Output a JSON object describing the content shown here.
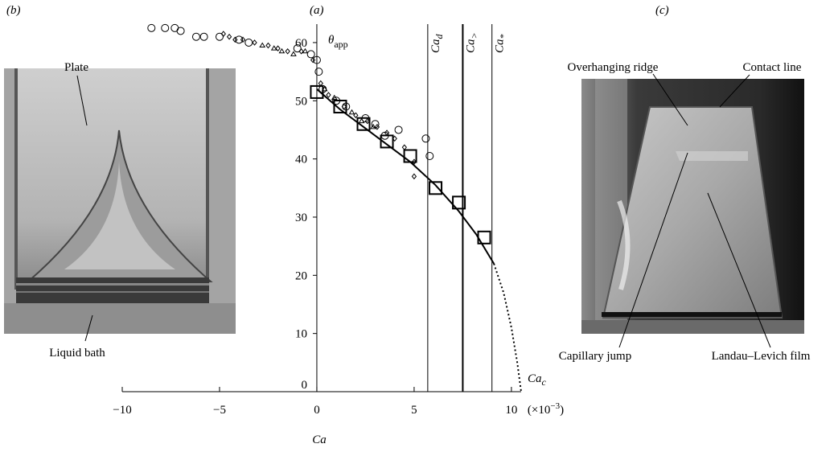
{
  "chart_data": {
    "type": "scatter",
    "panel_label": "(a)",
    "x_label": "Ca",
    "x_unit": {
      "text": "(×10",
      "sup": "−3",
      "tail": ")"
    },
    "y_label": {
      "text": "θ",
      "sub": "app"
    },
    "xlim": [
      -10,
      10.5
    ],
    "ylim": [
      0,
      64
    ],
    "xticks": [
      {
        "value": -10,
        "label": "−10"
      },
      {
        "value": -5,
        "label": "−5"
      },
      0,
      5,
      10
    ],
    "yticks": [
      0,
      10,
      20,
      30,
      40,
      50,
      60
    ],
    "series": [
      {
        "marker": "circle",
        "color": "#000000",
        "x": [
          -8.5,
          -7.8,
          -7.3,
          -7.0,
          -6.2,
          -5.8,
          -5.0,
          -4.0,
          -3.5,
          -1.0,
          -0.3,
          0.0,
          0.1,
          0.3,
          1.0,
          1.5,
          2.5,
          3.0,
          3.5,
          4.2,
          5.6,
          5.8
        ],
        "values": [
          62.5,
          62.5,
          62.5,
          62,
          61,
          61,
          61,
          60.5,
          60,
          59,
          58,
          57,
          55,
          52,
          50,
          49,
          47,
          46,
          44,
          45,
          43.5,
          40.5
        ]
      },
      {
        "marker": "diamond",
        "color": "#000000",
        "x": [
          -4.8,
          -4.5,
          -4.2,
          -3.8,
          -3.2,
          -2.5,
          -2.0,
          -1.5,
          -0.8,
          -0.2,
          0.2,
          0.6,
          1.4,
          2.0,
          2.6,
          3.1,
          3.6,
          4.0,
          4.5,
          5.0,
          5.0
        ],
        "values": [
          61.5,
          61,
          60.5,
          60.5,
          60,
          59.5,
          59,
          58.5,
          58.5,
          57,
          53,
          51,
          49,
          47.5,
          46.5,
          45.5,
          44.5,
          43.5,
          42,
          39.5,
          37
        ]
      },
      {
        "marker": "triangle",
        "color": "#000000",
        "x": [
          -2.8,
          -2.2,
          -1.8,
          -1.2,
          -0.6,
          0.4,
          0.9,
          1.8,
          2.3,
          2.9
        ],
        "values": [
          59.5,
          59,
          58.5,
          58,
          58.5,
          52,
          50.5,
          48,
          46.5,
          45.5
        ]
      },
      {
        "marker": "square",
        "color": "#000000",
        "x": [
          0.0,
          1.2,
          2.4,
          3.6,
          4.8,
          6.1,
          7.3,
          8.6
        ],
        "values": [
          51.5,
          49,
          46,
          43,
          40.5,
          35,
          32.5,
          26.5
        ]
      },
      {
        "marker": "line",
        "style": "solid",
        "color": "#000000",
        "x": [
          0.0,
          1.2,
          2.4,
          3.6,
          4.8,
          6.1,
          7.3,
          8.2,
          9.1
        ],
        "values": [
          52,
          48.5,
          45.5,
          42.5,
          39.5,
          35.5,
          31,
          27,
          22
        ]
      },
      {
        "marker": "line",
        "style": "dotted",
        "color": "#000000",
        "x": [
          9.1,
          9.6,
          10.0,
          10.3,
          10.5
        ],
        "values": [
          22,
          17,
          11,
          5,
          0
        ]
      }
    ],
    "vlines": [
      {
        "x": 5.7,
        "width": 1,
        "label": {
          "text": "Ca",
          "sub": "d"
        }
      },
      {
        "x": 7.5,
        "width": 2,
        "label": {
          "text": "Ca",
          "sub": ">"
        }
      },
      {
        "x": 9.0,
        "width": 1,
        "label": {
          "text": "Ca",
          "sub": "*"
        }
      }
    ],
    "end_label": {
      "x": 10.5,
      "text": "Ca",
      "sub": "c"
    }
  },
  "panel_b": {
    "panel_label": "(b)",
    "labels": [
      "Plate",
      "Liquid bath"
    ]
  },
  "panel_c": {
    "panel_label": "(c)",
    "labels": [
      "Overhanging ridge",
      "Contact line",
      "Capillary jump",
      "Landau–Levich film"
    ]
  }
}
